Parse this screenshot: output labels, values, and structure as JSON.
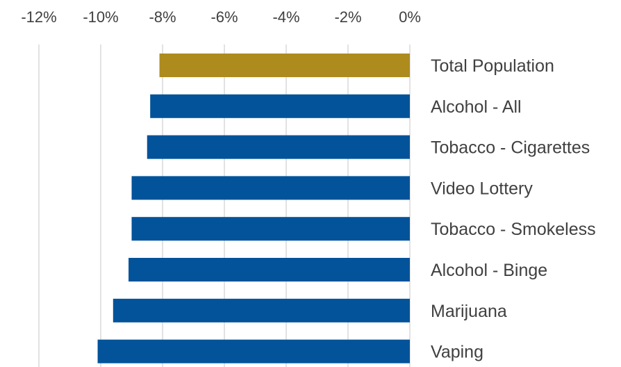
{
  "chart_data": {
    "type": "bar",
    "orientation": "horizontal",
    "categories": [
      "Total Population",
      "Alcohol - All",
      "Tobacco - Cigarettes",
      "Video Lottery",
      "Tobacco - Smokeless",
      "Alcohol - Binge",
      "Marijuana",
      "Vaping"
    ],
    "values": [
      -8.1,
      -8.4,
      -8.5,
      -9.0,
      -9.0,
      -9.1,
      -9.6,
      -10.1
    ],
    "colors": [
      "#AD8B1D",
      "#02539A",
      "#02539A",
      "#02539A",
      "#02539A",
      "#02539A",
      "#02539A",
      "#02539A"
    ],
    "xlim": [
      -12,
      0
    ],
    "x_ticks": [
      -12,
      -10,
      -8,
      -6,
      -4,
      -2,
      0
    ],
    "x_tick_labels": [
      "-12%",
      "-10%",
      "-8%",
      "-6%",
      "-4%",
      "-2%",
      "0%"
    ],
    "axis_position": "top",
    "grid": true,
    "title": "",
    "xlabel": "",
    "ylabel": ""
  }
}
